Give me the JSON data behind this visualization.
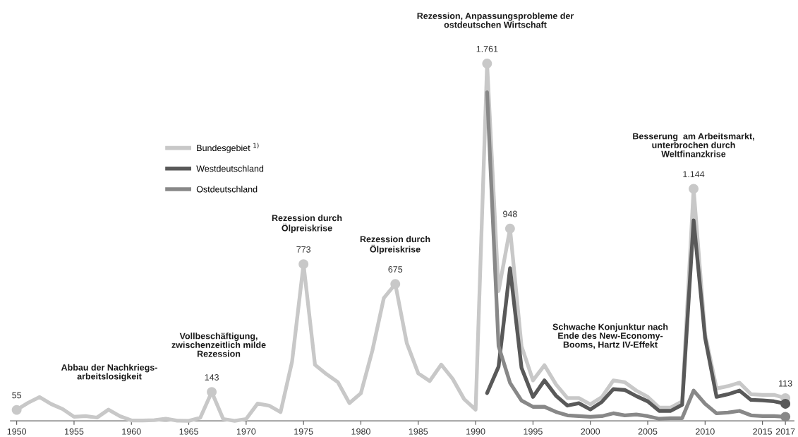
{
  "chart_data": {
    "type": "line",
    "x": [
      1950,
      1951,
      1952,
      1953,
      1954,
      1955,
      1956,
      1957,
      1958,
      1959,
      1960,
      1961,
      1962,
      1963,
      1964,
      1965,
      1966,
      1967,
      1968,
      1969,
      1970,
      1971,
      1972,
      1973,
      1974,
      1975,
      1976,
      1977,
      1978,
      1979,
      1980,
      1981,
      1982,
      1983,
      1984,
      1985,
      1986,
      1987,
      1988,
      1989,
      1990,
      1991,
      1992,
      1993,
      1994,
      1995,
      1996,
      1997,
      1998,
      1999,
      2000,
      2001,
      2002,
      2003,
      2004,
      2005,
      2006,
      2007,
      2008,
      2009,
      2010,
      2011,
      2012,
      2013,
      2014,
      2015,
      2016,
      2017
    ],
    "series": [
      {
        "name": "Bundesgebiet $^{1)}$",
        "color": "#c8c8c8",
        "values": [
          55,
          90,
          118,
          84,
          59,
          21,
          24,
          17,
          56,
          24,
          3,
          3,
          4,
          11,
          2,
          1,
          16,
          143,
          10,
          1,
          10,
          86,
          76,
          44,
          292,
          773,
          277,
          231,
          191,
          88,
          137,
          347,
          606,
          675,
          384,
          235,
          197,
          278,
          208,
          108,
          56,
          1761,
          640,
          948,
          369,
          200,
          275,
          181,
          113,
          113,
          82,
          118,
          200,
          191,
          150,
          119,
          66,
          66,
          97,
          1144,
          428,
          160,
          172,
          189,
          132,
          129,
          129,
          113
        ],
        "value_labels": [
          "55",
          null,
          null,
          null,
          null,
          null,
          null,
          null,
          null,
          null,
          null,
          null,
          null,
          null,
          null,
          null,
          null,
          "143",
          null,
          null,
          null,
          null,
          null,
          null,
          null,
          "773",
          null,
          null,
          null,
          null,
          null,
          null,
          null,
          "675",
          null,
          null,
          null,
          null,
          null,
          null,
          null,
          "1.761",
          null,
          "948",
          null,
          null,
          null,
          null,
          null,
          null,
          null,
          null,
          null,
          null,
          null,
          null,
          null,
          null,
          null,
          "1.144",
          null,
          null,
          null,
          null,
          null,
          null,
          null,
          "113"
        ]
      },
      {
        "name": "Westdeutschland",
        "color": "#595959",
        "values": [
          null,
          null,
          null,
          null,
          null,
          null,
          null,
          null,
          null,
          null,
          null,
          null,
          null,
          null,
          null,
          null,
          null,
          null,
          null,
          null,
          null,
          null,
          null,
          null,
          null,
          null,
          null,
          null,
          null,
          null,
          null,
          null,
          null,
          null,
          null,
          null,
          null,
          null,
          null,
          null,
          null,
          138,
          268,
          753,
          262,
          119,
          200,
          125,
          76,
          88,
          57,
          94,
          157,
          153,
          123,
          97,
          50,
          50,
          80,
          989,
          410,
          119,
          132,
          150,
          104,
          102,
          97,
          85
        ]
      },
      {
        "name": "Ostdeutschland",
        "color": "#888888",
        "values": [
          null,
          null,
          null,
          null,
          null,
          null,
          null,
          null,
          null,
          null,
          null,
          null,
          null,
          null,
          null,
          null,
          null,
          null,
          null,
          null,
          null,
          null,
          null,
          null,
          null,
          null,
          null,
          null,
          null,
          null,
          null,
          null,
          null,
          null,
          null,
          null,
          null,
          null,
          null,
          null,
          null,
          1620,
          369,
          188,
          101,
          70,
          70,
          45,
          28,
          24,
          21,
          24,
          38,
          28,
          32,
          24,
          11,
          14,
          14,
          150,
          85,
          38,
          42,
          50,
          28,
          24,
          24,
          21
        ]
      }
    ],
    "xlim": [
      1949.45,
      2017.75
    ],
    "xticks": [
      1950,
      1955,
      1960,
      1965,
      1970,
      1975,
      1980,
      1985,
      1990,
      1995,
      2000,
      2005,
      2010,
      2015,
      2017
    ],
    "tick_labels": "x",
    "grid": false,
    "legend": "top left",
    "annotations": [
      "Abbau der Nachkriegs-\narbeitslosigkeit",
      "Vollbeschäftigung,\nzwischenzeitlich milde\nRezession",
      "Rezession durch\nÖlpreiskrise",
      "Rezession durch\nÖlpreiskrise",
      "Rezession, Anpassungsprobleme der\nostdeutschen Wirtschaft",
      "Schwache Konjunktur nach\nEnde des New-Economy-\nBooms, Hartz IV-Effekt",
      "Besserung  am Arbeitsmarkt,\nunterbrochen durch\nWeltfinanzkrise"
    ]
  }
}
